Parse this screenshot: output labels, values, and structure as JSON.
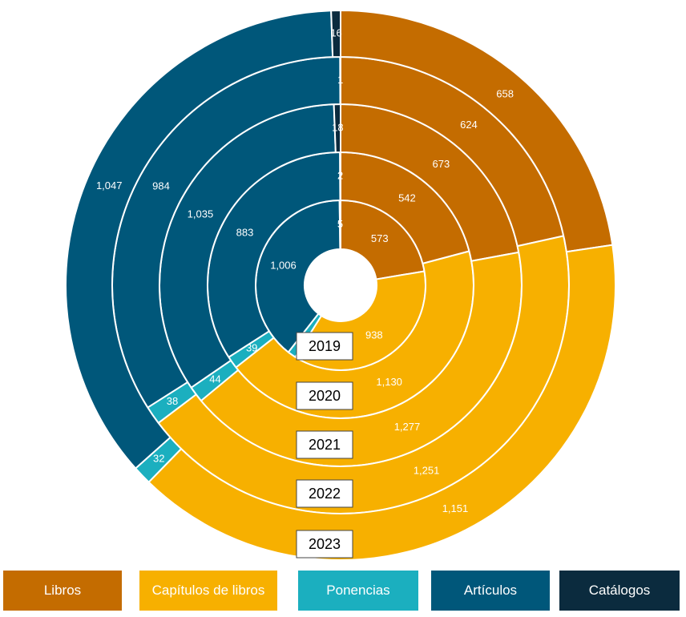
{
  "chart_data": {
    "type": "sunburst-donut",
    "title": "",
    "categories": [
      "Libros",
      "Capítulos de libros",
      "Ponencias",
      "Artículos",
      "Catálogos"
    ],
    "colors": {
      "Libros": "#C46C00",
      "Capítulos de libros": "#F7B000",
      "Ponencias": "#1BAFBF",
      "Artículos": "#00577A",
      "Catálogos": "#0B2B3E"
    },
    "rings": [
      {
        "year": "2019",
        "values": [
          573,
          938,
          41,
          1006,
          5
        ],
        "labels": [
          "573",
          "938",
          "",
          "1,006",
          "5"
        ]
      },
      {
        "year": "2020",
        "values": [
          542,
          1130,
          39,
          883,
          2
        ],
        "labels": [
          "542",
          "1,130",
          "39",
          "883",
          "2"
        ]
      },
      {
        "year": "2021",
        "values": [
          673,
          1277,
          44,
          1035,
          18
        ],
        "labels": [
          "673",
          "1,277",
          "44",
          "1,035",
          "18"
        ]
      },
      {
        "year": "2022",
        "values": [
          624,
          1251,
          38,
          984,
          1
        ],
        "labels": [
          "624",
          "1,251",
          "38",
          "984",
          "1"
        ]
      },
      {
        "year": "2023",
        "values": [
          658,
          1151,
          32,
          1047,
          16
        ],
        "labels": [
          "658",
          "1,151",
          "32",
          "1,047",
          "16"
        ]
      }
    ],
    "legend": {
      "position": "bottom",
      "items": [
        "Libros",
        "Capítulos de libros",
        "Ponencias",
        "Artículos",
        "Catálogos"
      ]
    }
  }
}
